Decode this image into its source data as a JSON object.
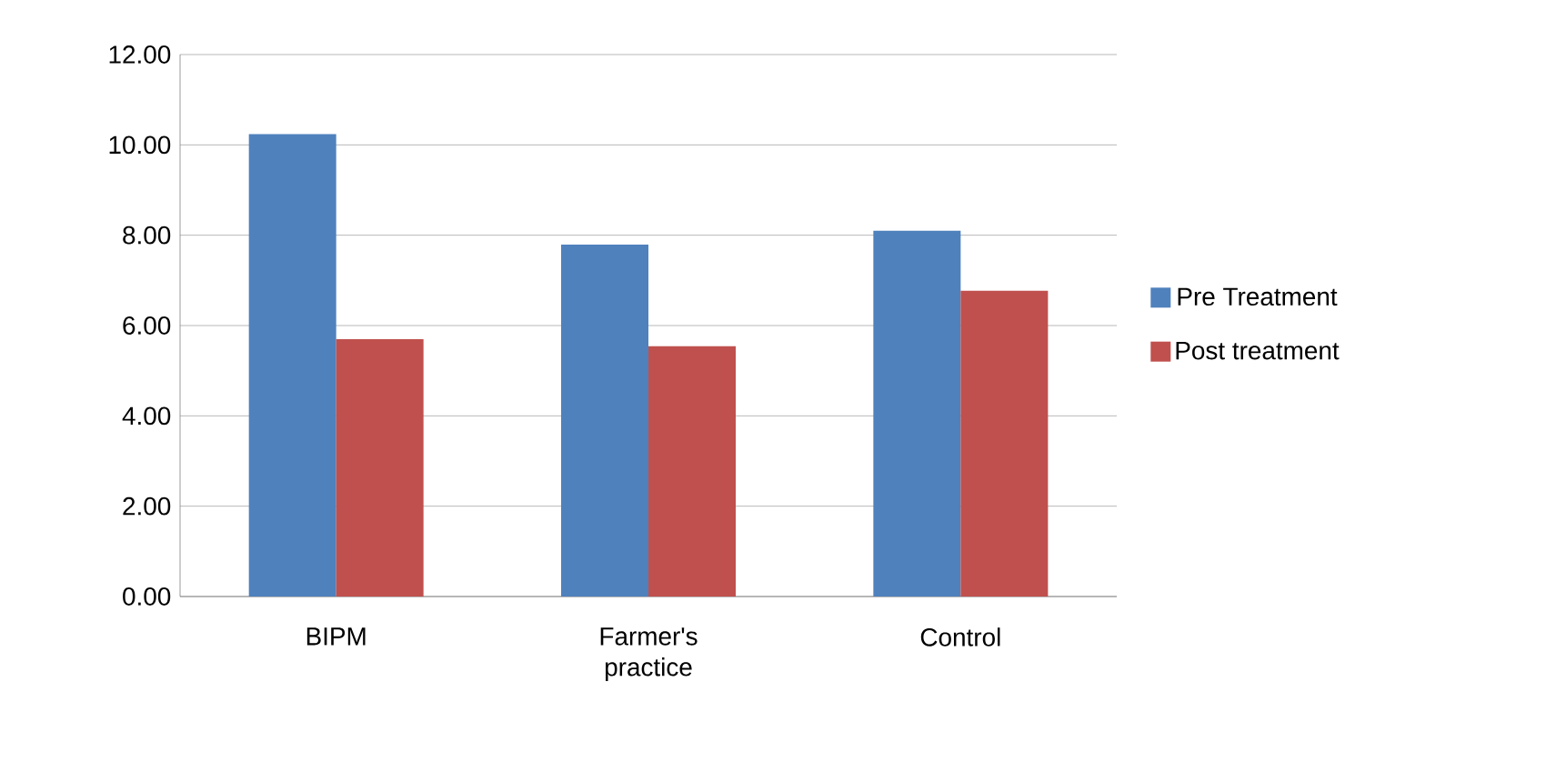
{
  "chart_data": {
    "type": "bar",
    "categories": [
      "BIPM",
      "Farmer's practice",
      "Control"
    ],
    "series": [
      {
        "name": "Pre Treatment",
        "color": "#4f81bd",
        "values": [
          10.24,
          7.79,
          8.1
        ]
      },
      {
        "name": "Post treatment",
        "color": "#c0504d",
        "values": [
          5.7,
          5.54,
          6.77
        ]
      }
    ],
    "ylim": [
      0,
      12
    ],
    "yticks": [
      {
        "value": 0,
        "label": "0.00"
      },
      {
        "value": 2,
        "label": "2.00"
      },
      {
        "value": 4,
        "label": "4.00"
      },
      {
        "value": 6,
        "label": "6.00"
      },
      {
        "value": 8,
        "label": "8.00"
      },
      {
        "value": 10,
        "label": "10.00"
      },
      {
        "value": 12,
        "label": "12.00"
      }
    ],
    "grid": "y",
    "legend": "right"
  }
}
